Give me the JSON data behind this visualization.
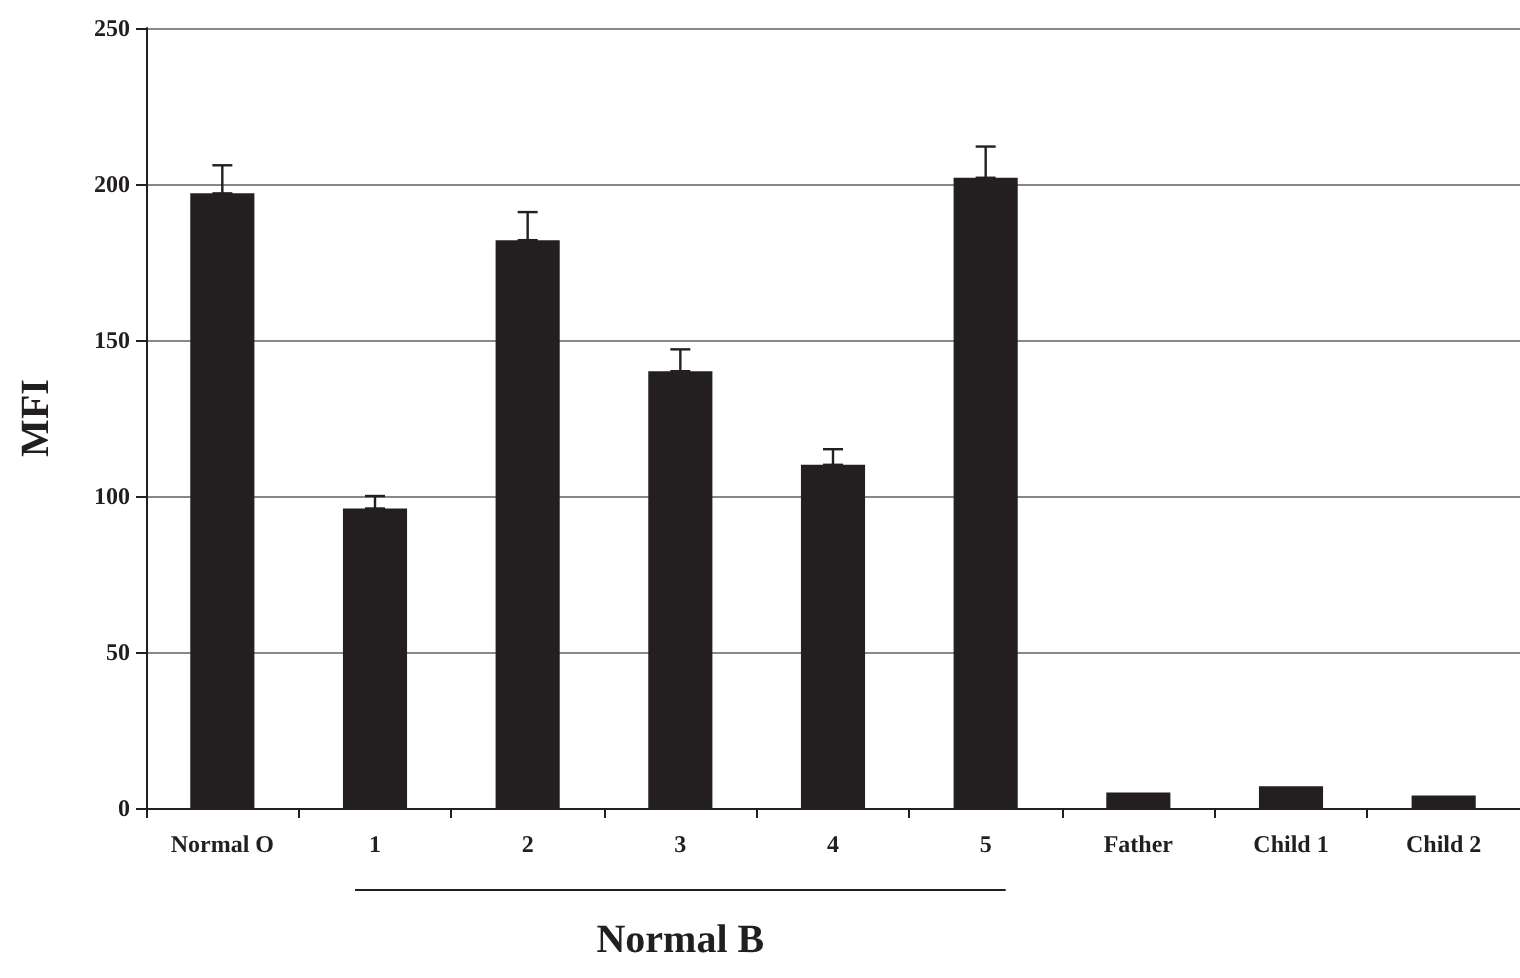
{
  "chart_data": {
    "type": "bar",
    "ylabel": "MFI",
    "categories": [
      "Normal O",
      "1",
      "2",
      "3",
      "4",
      "5",
      "Father",
      "Child 1",
      "Child 2"
    ],
    "values": [
      197,
      96,
      182,
      140,
      110,
      202,
      5,
      7,
      4
    ],
    "errors": [
      [
        197,
        206
      ],
      [
        96,
        100
      ],
      [
        182,
        191
      ],
      [
        140,
        147
      ],
      [
        110,
        115
      ],
      [
        202,
        212
      ],
      null,
      null,
      null
    ],
    "color": "#231f20",
    "ylim": [
      0,
      250
    ],
    "yticks": [
      0,
      50,
      100,
      150,
      200,
      250
    ],
    "grid": "y",
    "annotations": [
      "Normal B"
    ]
  }
}
